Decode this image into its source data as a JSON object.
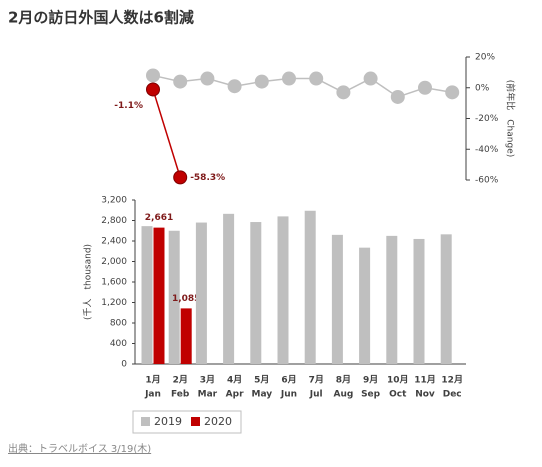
{
  "title": "2月の訪日外国人数は6割減",
  "source": "出典：トラベルボイス 3/19(木)",
  "chart_data": [
    {
      "type": "line",
      "y_axis_label": "(前年比　Change)",
      "y_axis_side": "right",
      "ylim": [
        -60,
        20
      ],
      "yticks": [
        {
          "value": -60,
          "label": "-60%"
        },
        {
          "value": -40,
          "label": "-40%"
        },
        {
          "value": -20,
          "label": "-20%"
        },
        {
          "value": 0,
          "label": "0%"
        },
        {
          "value": 20,
          "label": "20%"
        }
      ],
      "series": [
        {
          "name": "2019",
          "color": "#bfbfbf",
          "values": [
            8,
            4,
            6,
            1,
            4,
            6,
            6,
            -3,
            6,
            -6,
            0,
            -3
          ]
        },
        {
          "name": "2020",
          "color": "#c00000",
          "values": [
            -1.1,
            -58.3,
            null,
            null,
            null,
            null,
            null,
            null,
            null,
            null,
            null,
            null
          ],
          "value_labels": [
            "-1.1%",
            "-58.3%",
            null,
            null,
            null,
            null,
            null,
            null,
            null,
            null,
            null,
            null
          ]
        }
      ]
    },
    {
      "type": "bar",
      "y_axis_label": "(千人　thousand)",
      "categories": [
        [
          "1月",
          "Jan"
        ],
        [
          "2月",
          "Feb"
        ],
        [
          "3月",
          "Mar"
        ],
        [
          "4月",
          "Apr"
        ],
        [
          "5月",
          "May"
        ],
        [
          "6月",
          "Jun"
        ],
        [
          "7月",
          "Jul"
        ],
        [
          "8月",
          "Aug"
        ],
        [
          "9月",
          "Sep"
        ],
        [
          "10月",
          "Oct"
        ],
        [
          "11月",
          "Nov"
        ],
        [
          "12月",
          "Dec"
        ]
      ],
      "ylim": [
        0,
        3200
      ],
      "yticks": [
        0,
        400,
        800,
        {
          "value": 1200,
          "label": "1,200"
        },
        {
          "value": 1600,
          "label": "1,600"
        },
        {
          "value": 2000,
          "label": "2,000"
        },
        {
          "value": 2400,
          "label": "2,400"
        },
        {
          "value": 2800,
          "label": "2,800"
        },
        {
          "value": 3200,
          "label": "3,200"
        }
      ],
      "legend": "bottom",
      "series": [
        {
          "name": "2019",
          "color": "#bfbfbf",
          "values": [
            2690,
            2600,
            2760,
            2930,
            2770,
            2880,
            2990,
            2520,
            2270,
            2500,
            2440,
            2530
          ]
        },
        {
          "name": "2020",
          "color": "#c00000",
          "values": [
            2661,
            1085,
            null,
            null,
            null,
            null,
            null,
            null,
            null,
            null,
            null,
            null
          ],
          "value_labels": [
            "2,661",
            "1,085",
            null,
            null,
            null,
            null,
            null,
            null,
            null,
            null,
            null,
            null
          ]
        }
      ]
    }
  ]
}
